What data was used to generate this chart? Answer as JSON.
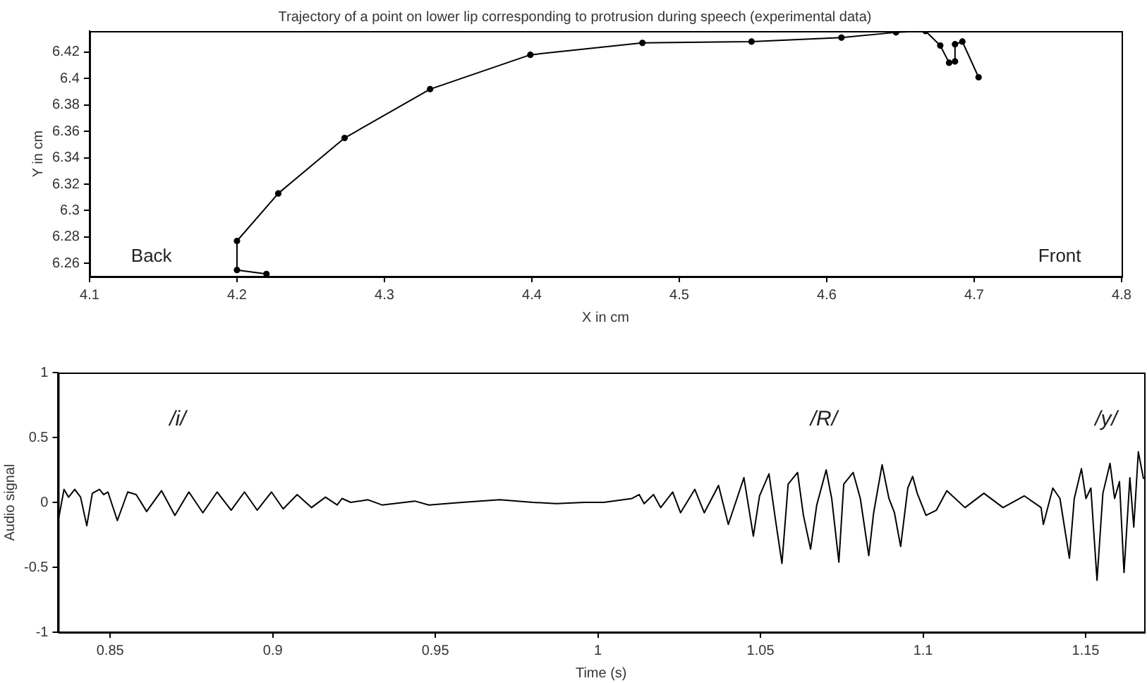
{
  "chart_data": [
    {
      "type": "line",
      "title": "Trajectory of a point on lower lip corresponding to protrusion during speech (experimental data)",
      "xlabel": "X in cm",
      "ylabel": "Y in cm",
      "x": [
        4.22,
        4.2,
        4.2,
        4.228,
        4.273,
        4.331,
        4.399,
        4.475,
        4.549,
        4.61,
        4.647,
        4.667,
        4.677,
        4.683,
        4.687,
        4.687,
        4.692,
        4.703
      ],
      "series": [
        {
          "color": "#000000",
          "values": [
            6.252,
            6.255,
            6.277,
            6.313,
            6.355,
            6.392,
            6.418,
            6.427,
            6.428,
            6.431,
            6.435,
            6.436,
            6.425,
            6.412,
            6.413,
            6.426,
            6.428,
            6.401
          ]
        }
      ],
      "xlim": [
        4.1,
        4.8
      ],
      "ylim": [
        6.25,
        6.436
      ],
      "xticks": [
        4.1,
        4.2,
        4.3,
        4.4,
        4.5,
        4.6,
        4.7,
        4.8
      ],
      "yticks": [
        6.26,
        6.28,
        6.3,
        6.32,
        6.34,
        6.36,
        6.38,
        6.4,
        6.42
      ],
      "marker": "circle",
      "annotations": [
        "Back",
        "Front"
      ]
    },
    {
      "type": "line",
      "xlabel": "Time (s)",
      "ylabel": "Audio signal",
      "x": [
        0.8341,
        0.8358,
        0.8372,
        0.8391,
        0.8409,
        0.8428,
        0.8445,
        0.8467,
        0.848,
        0.8493,
        0.8522,
        0.8554,
        0.858,
        0.8612,
        0.8658,
        0.8699,
        0.8742,
        0.8785,
        0.8829,
        0.8872,
        0.8913,
        0.8952,
        0.8996,
        0.9032,
        0.9075,
        0.9119,
        0.9162,
        0.9198,
        0.9213,
        0.924,
        0.9293,
        0.9336,
        0.9437,
        0.948,
        0.9582,
        0.9698,
        0.98,
        0.9872,
        0.9959,
        1.0018,
        1.0105,
        1.0127,
        1.0142,
        1.0171,
        1.0193,
        1.023,
        1.0254,
        1.0298,
        1.0327,
        1.0371,
        1.0401,
        1.0449,
        1.0478,
        1.0497,
        1.0526,
        1.0547,
        1.0566,
        1.0585,
        1.0614,
        1.0632,
        1.0654,
        1.0673,
        1.0702,
        1.0719,
        1.0741,
        1.0756,
        1.0785,
        1.0807,
        1.0833,
        1.0848,
        1.0874,
        1.0895,
        1.0912,
        1.0931,
        1.0953,
        1.0968,
        1.0982,
        1.1009,
        1.1041,
        1.1073,
        1.1129,
        1.1187,
        1.1246,
        1.1311,
        1.1363,
        1.137,
        1.1399,
        1.1421,
        1.145,
        1.1465,
        1.1487,
        1.1501,
        1.1516,
        1.1535,
        1.1553,
        1.1575,
        1.1589,
        1.1604,
        1.1618,
        1.1636,
        1.1648,
        1.1662,
        1.1678
      ],
      "series": [
        {
          "color": "#000000",
          "values": [
            -0.13,
            0.1,
            0.04,
            0.1,
            0.04,
            -0.18,
            0.07,
            0.1,
            0.06,
            0.08,
            -0.14,
            0.08,
            0.06,
            -0.07,
            0.09,
            -0.1,
            0.08,
            -0.08,
            0.08,
            -0.06,
            0.08,
            -0.06,
            0.08,
            -0.05,
            0.06,
            -0.04,
            0.04,
            -0.02,
            0.03,
            0.0,
            0.02,
            -0.02,
            0.01,
            -0.02,
            0.0,
            0.02,
            0.0,
            -0.01,
            0.0,
            0.0,
            0.03,
            0.06,
            -0.01,
            0.06,
            -0.04,
            0.08,
            -0.08,
            0.1,
            -0.08,
            0.13,
            -0.17,
            0.19,
            -0.26,
            0.05,
            0.22,
            -0.15,
            -0.47,
            0.14,
            0.23,
            -0.1,
            -0.36,
            -0.02,
            0.25,
            0.03,
            -0.46,
            0.14,
            0.23,
            0.03,
            -0.41,
            -0.08,
            0.29,
            0.03,
            -0.08,
            -0.34,
            0.11,
            0.2,
            0.07,
            -0.1,
            -0.06,
            0.09,
            -0.04,
            0.07,
            -0.04,
            0.05,
            -0.04,
            -0.17,
            0.11,
            0.03,
            -0.43,
            0.03,
            0.26,
            0.03,
            0.11,
            -0.6,
            0.07,
            0.3,
            0.03,
            0.16,
            -0.54,
            0.19,
            -0.19,
            0.39,
            0.18
          ]
        }
      ],
      "xlim": [
        0.834,
        1.168
      ],
      "ylim": [
        -1,
        1
      ],
      "xticks": [
        0.85,
        0.9,
        0.95,
        1,
        1.05,
        1.1,
        1.15
      ],
      "yticks": [
        -1,
        -0.5,
        0,
        0.5,
        1
      ],
      "marker": "none",
      "annotations": [
        "/i/",
        "/R/",
        "/y/"
      ]
    }
  ]
}
